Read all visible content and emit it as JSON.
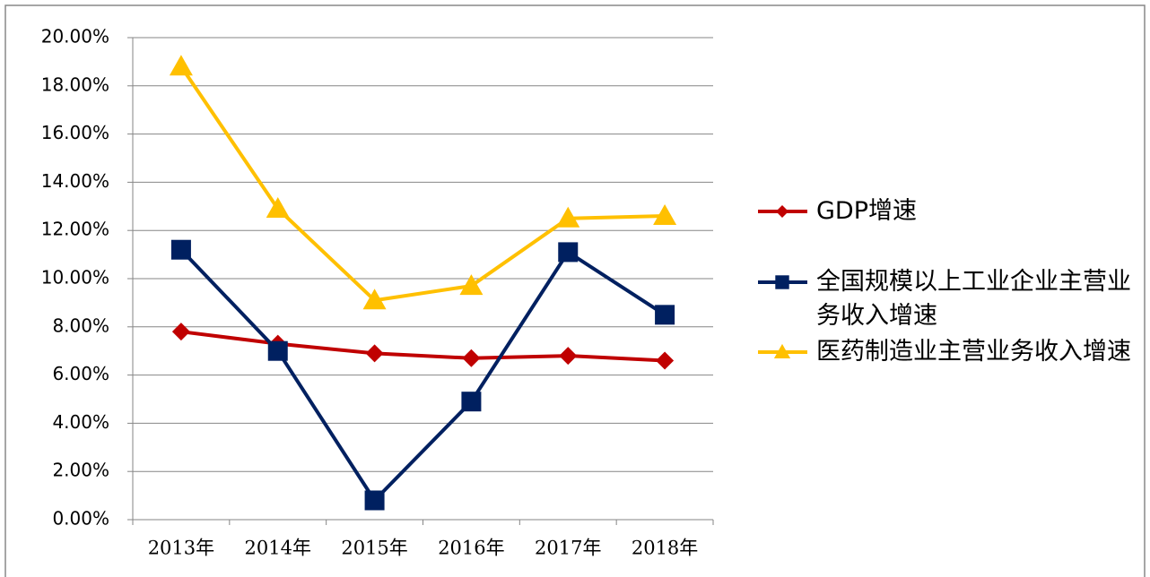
{
  "chart_data": {
    "type": "line",
    "categories": [
      "2013年",
      "2014年",
      "2015年",
      "2016年",
      "2017年",
      "2018年"
    ],
    "series": [
      {
        "name": "GDP增速",
        "color": "#c00000",
        "marker": "diamond",
        "values": [
          7.8,
          7.3,
          6.9,
          6.7,
          6.8,
          6.6
        ]
      },
      {
        "name": "全国规模以上工业企业主营业务收入增速",
        "color": "#002060",
        "marker": "square",
        "values": [
          11.2,
          7.0,
          0.8,
          4.9,
          11.1,
          8.5
        ]
      },
      {
        "name": "医药制造业主营业务收入增速",
        "color": "#ffc000",
        "marker": "triangle",
        "values": [
          18.8,
          12.9,
          9.1,
          9.7,
          12.5,
          12.6
        ]
      }
    ],
    "ylim": [
      0,
      20
    ],
    "yticks": [
      {
        "value": 0,
        "label": "0.00%"
      },
      {
        "value": 2,
        "label": "2.00%"
      },
      {
        "value": 4,
        "label": "4.00%"
      },
      {
        "value": 6,
        "label": "6.00%"
      },
      {
        "value": 8,
        "label": "8.00%"
      },
      {
        "value": 10,
        "label": "10.00%"
      },
      {
        "value": 12,
        "label": "12.00%"
      },
      {
        "value": 14,
        "label": "14.00%"
      },
      {
        "value": 16,
        "label": "16.00%"
      },
      {
        "value": 18,
        "label": "18.00%"
      },
      {
        "value": 20,
        "label": "20.00%"
      }
    ],
    "grid": true,
    "legend": "right"
  }
}
